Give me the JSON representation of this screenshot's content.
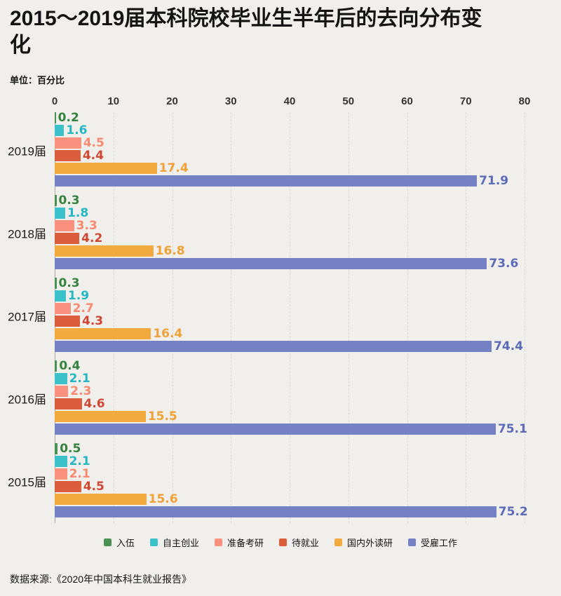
{
  "title": {
    "line1": "2015～2019届本科院校毕业生半年后的去向分布变",
    "line2": "化"
  },
  "subtitle": "单位：百分比",
  "source": "数据来源:《2020年中国本科生就业报告》",
  "chart_data": {
    "type": "bar",
    "orientation": "horizontal",
    "title": "2015～2019届本科院校毕业生半年后的去向分布变化",
    "unit": "百分比",
    "categories": [
      "2019届",
      "2018届",
      "2017届",
      "2016届",
      "2015届"
    ],
    "series": [
      {
        "name": "入伍",
        "color": "#4a9153",
        "text_color": "#35813e",
        "values": [
          0.2,
          0.3,
          0.3,
          0.4,
          0.5
        ]
      },
      {
        "name": "自主创业",
        "color": "#3cc1ca",
        "text_color": "#23b7c3",
        "values": [
          1.6,
          1.8,
          1.9,
          2.1,
          2.1
        ]
      },
      {
        "name": "准备考研",
        "color": "#f9917e",
        "text_color": "#f8896f",
        "values": [
          4.5,
          3.3,
          2.7,
          2.3,
          2.1
        ]
      },
      {
        "name": "待就业",
        "color": "#dc5d3b",
        "text_color": "#cf4631",
        "values": [
          4.4,
          4.2,
          4.3,
          4.6,
          4.5
        ]
      },
      {
        "name": "国内外读研",
        "color": "#f2a93d",
        "text_color": "#f0a136",
        "values": [
          17.4,
          16.8,
          16.4,
          15.5,
          15.6
        ]
      },
      {
        "name": "受雇工作",
        "color": "#7481c4",
        "text_color": "#5c6bb8",
        "values": [
          71.9,
          73.6,
          74.4,
          75.1,
          75.2
        ]
      }
    ],
    "x_axis": {
      "min": 0,
      "max": 80,
      "ticks": [
        0,
        10,
        20,
        30,
        40,
        50,
        60,
        70,
        80
      ]
    },
    "legend_position": "bottom",
    "grid": "vertical-dashed",
    "background_color": "#f0efec"
  }
}
